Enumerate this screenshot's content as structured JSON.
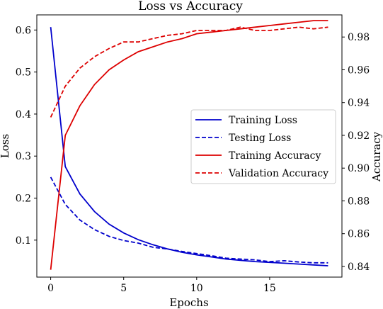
{
  "chart_data": {
    "type": "line",
    "title": "Loss vs Accuracy",
    "xlabel": "Epochs",
    "ylabel_left": "Loss",
    "ylabel_right": "Accuracy",
    "xlim": [
      -0.95,
      19.95
    ],
    "ylim_left": [
      0.012,
      0.636
    ],
    "ylim_right": [
      0.8335,
      0.9935
    ],
    "x": [
      0,
      1,
      2,
      3,
      4,
      5,
      6,
      7,
      8,
      9,
      10,
      11,
      12,
      13,
      14,
      15,
      16,
      17,
      18,
      19
    ],
    "x_ticks": [
      0,
      5,
      10,
      15
    ],
    "y_ticks_left": [
      0.1,
      0.2,
      0.3,
      0.4,
      0.5,
      0.6
    ],
    "y_ticks_right": [
      0.84,
      0.86,
      0.88,
      0.9,
      0.92,
      0.94,
      0.96,
      0.98
    ],
    "series": [
      {
        "name": "Training Loss",
        "axis": "left",
        "color": "#0000cc",
        "dash": "solid",
        "values": [
          0.607,
          0.275,
          0.21,
          0.168,
          0.138,
          0.117,
          0.101,
          0.089,
          0.079,
          0.071,
          0.065,
          0.06,
          0.055,
          0.052,
          0.049,
          0.047,
          0.045,
          0.043,
          0.041,
          0.039
        ]
      },
      {
        "name": "Testing Loss",
        "axis": "left",
        "color": "#0000cc",
        "dash": "dashed",
        "values": [
          0.25,
          0.185,
          0.148,
          0.125,
          0.109,
          0.099,
          0.093,
          0.083,
          0.079,
          0.073,
          0.068,
          0.063,
          0.057,
          0.055,
          0.053,
          0.049,
          0.051,
          0.048,
          0.046,
          0.046
        ]
      },
      {
        "name": "Training Accuracy",
        "axis": "right",
        "color": "#dd0000",
        "dash": "solid",
        "values": [
          0.838,
          0.92,
          0.938,
          0.951,
          0.96,
          0.966,
          0.971,
          0.974,
          0.977,
          0.979,
          0.982,
          0.983,
          0.984,
          0.985,
          0.986,
          0.987,
          0.988,
          0.989,
          0.99,
          0.99
        ]
      },
      {
        "name": "Validation Accuracy",
        "axis": "right",
        "color": "#dd0000",
        "dash": "dashed",
        "values": [
          0.931,
          0.95,
          0.961,
          0.968,
          0.973,
          0.977,
          0.977,
          0.979,
          0.981,
          0.982,
          0.984,
          0.984,
          0.984,
          0.986,
          0.984,
          0.984,
          0.985,
          0.986,
          0.985,
          0.986
        ]
      }
    ],
    "legend_position": "center-right",
    "grid": false
  }
}
